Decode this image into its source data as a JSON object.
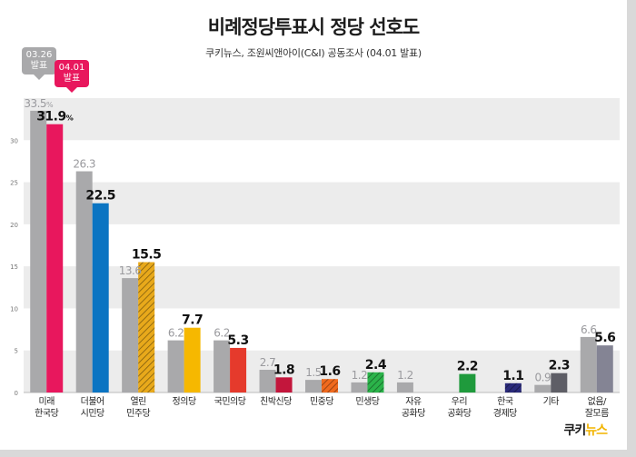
{
  "title": "비례정당투표시 정당 선호도",
  "subtitle": "쿠키뉴스, 조원씨앤아이(C&I) 공동조사 (04.01 발표)",
  "logo": {
    "part1": "쿠키",
    "part2": "뉴스"
  },
  "legend": {
    "prev": {
      "line1": "03.26",
      "line2": "발표",
      "color": "#a9a9ab"
    },
    "curr": {
      "line1": "04.01",
      "line2": "발표",
      "color": "#e8175d"
    }
  },
  "chart_data": {
    "type": "bar",
    "ylim": [
      0,
      35
    ],
    "yticks": [
      0,
      5,
      10,
      15,
      20,
      25,
      30
    ],
    "grid": true,
    "categories": [
      {
        "lines": [
          "미래",
          "한국당"
        ],
        "prev": 33.5,
        "curr": 31.9,
        "prev_label": "33.5%",
        "curr_label": "31.9%",
        "color": "#e8175d",
        "hatch": false
      },
      {
        "lines": [
          "더불어",
          "시민당"
        ],
        "prev": 26.3,
        "curr": 22.5,
        "prev_label": "26.3",
        "curr_label": "22.5",
        "color": "#0a74c2",
        "hatch": false
      },
      {
        "lines": [
          "열린",
          "민주당"
        ],
        "prev": 13.6,
        "curr": 15.5,
        "prev_label": "13.6",
        "curr_label": "15.5",
        "color": "#e8a91b",
        "hatch": true
      },
      {
        "lines": [
          "정의당"
        ],
        "prev": 6.2,
        "curr": 7.7,
        "prev_label": "6.2",
        "curr_label": "7.7",
        "color": "#f6b800",
        "hatch": false
      },
      {
        "lines": [
          "국민의당"
        ],
        "prev": 6.2,
        "curr": 5.3,
        "prev_label": "6.2",
        "curr_label": "5.3",
        "color": "#e53a2c",
        "hatch": false
      },
      {
        "lines": [
          "친박신당"
        ],
        "prev": 2.7,
        "curr": 1.8,
        "prev_label": "2.7",
        "curr_label": "1.8",
        "color": "#c3163c",
        "hatch": false
      },
      {
        "lines": [
          "민중당"
        ],
        "prev": 1.5,
        "curr": 1.6,
        "prev_label": "1.5",
        "curr_label": "1.6",
        "color": "#f06a1e",
        "hatch": true
      },
      {
        "lines": [
          "민생당"
        ],
        "prev": 1.2,
        "curr": 2.4,
        "prev_label": "1.2",
        "curr_label": "2.4",
        "color": "#2bb34a",
        "hatch": true
      },
      {
        "lines": [
          "자유",
          "공화당"
        ],
        "prev": 1.2,
        "prev_label": "1.2",
        "curr": null,
        "curr_label": null,
        "color": null,
        "hatch": false
      },
      {
        "lines": [
          "우리",
          "공화당"
        ],
        "prev": null,
        "prev_label": null,
        "curr": 2.2,
        "curr_label": "2.2",
        "color": "#1f9a3c",
        "hatch": false
      },
      {
        "lines": [
          "한국",
          "경제당"
        ],
        "prev": null,
        "prev_label": null,
        "curr": 1.1,
        "curr_label": "1.1",
        "color": "#2a2a7a",
        "hatch": true
      },
      {
        "lines": [
          "기타"
        ],
        "prev": 0.9,
        "curr": 2.3,
        "prev_label": "0.9",
        "curr_label": "2.3",
        "color": "#5e5e66",
        "hatch": false
      },
      {
        "lines": [
          "없음/",
          "잘모름"
        ],
        "prev": 6.6,
        "curr": 5.6,
        "prev_label": "6.6",
        "curr_label": "5.6",
        "color": "#848494",
        "hatch": false
      }
    ]
  }
}
